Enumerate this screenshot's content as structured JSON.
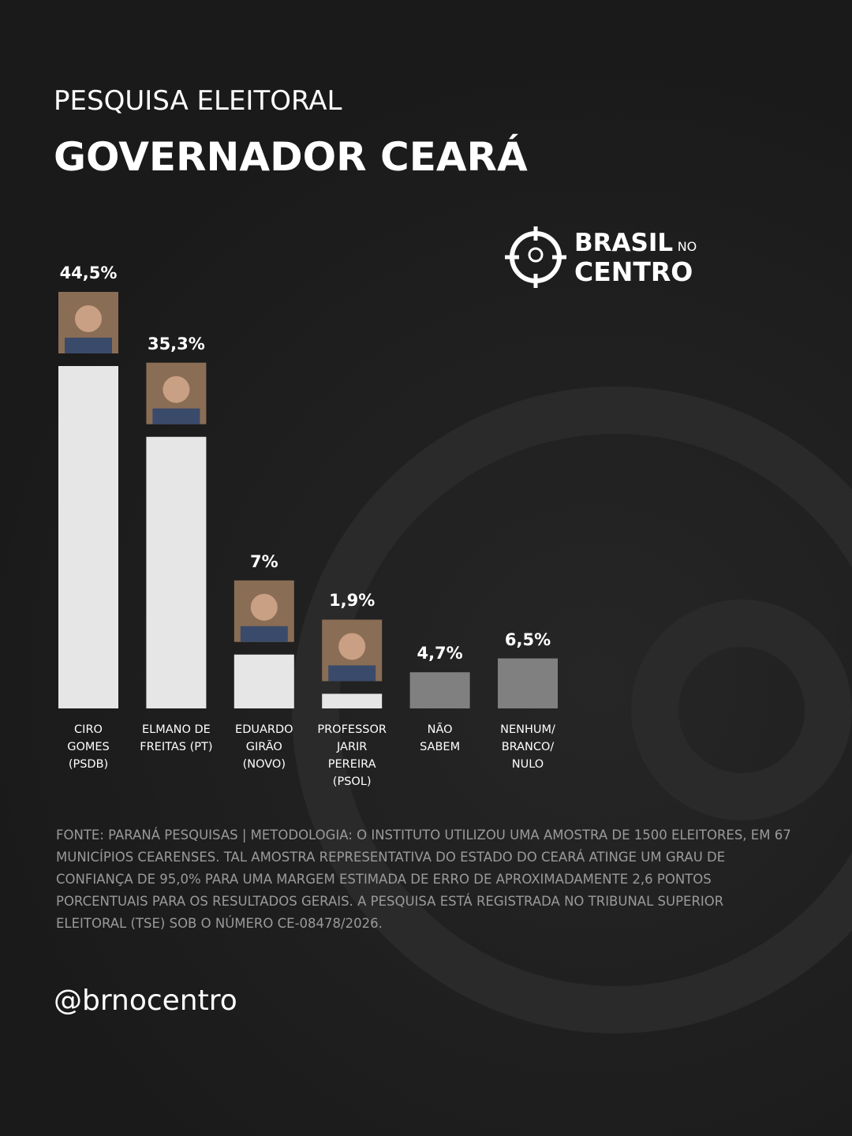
{
  "chart_data": {
    "type": "bar",
    "kicker": "PESQUISA ELEITORAL",
    "title": "GOVERNADOR CEARÁ",
    "categories": [
      "CIRO\nGOMES\n(PSDB)",
      "ELMANO DE\nFREITAS (PT)",
      "EDUARDO\nGIRÃO\n(NOVO)",
      "PROFESSOR\nJARIR\nPEREIRA\n(PSOL)",
      "NÃO\nSABEM",
      "NENHUM/\nBRANCO/\nNULO"
    ],
    "values": [
      44.5,
      35.3,
      7,
      1.9,
      4.7,
      6.5
    ],
    "value_labels": [
      "44,5%",
      "35,3%",
      "7%",
      "1,9%",
      "4,7%",
      "6,5%"
    ],
    "colors": [
      "#e6e6e6",
      "#e6e6e6",
      "#e6e6e6",
      "#e6e6e6",
      "#808080",
      "#808080"
    ],
    "source": "FONTE: PARANÁ PESQUISAS | METODOLOGIA: O INSTITUTO UTILIZOU UMA AMOSTRA DE 1500 ELEITORES, EM 67 MUNICÍPIOS CEARENSES. TAL AMOSTRA REPRESENTATIVA DO ESTADO DO CEARÁ ATINGE UM GRAU DE CONFIANÇA DE 95,0% PARA UMA MARGEM ESTIMADA DE ERRO DE APROXIMADAMENTE 2,6 PONTOS PORCENTUAIS PARA OS RESULTADOS GERAIS. A PESQUISA ESTÁ REGISTRADA NO TRIBUNAL SUPERIOR ELEITORAL (TSE) SOB O NÚMERO CE-08478/2026."
  },
  "logo": {
    "line1": "BRASIL",
    "small": "NO",
    "line2": "CENTRO"
  },
  "handle": "@brnocentro"
}
